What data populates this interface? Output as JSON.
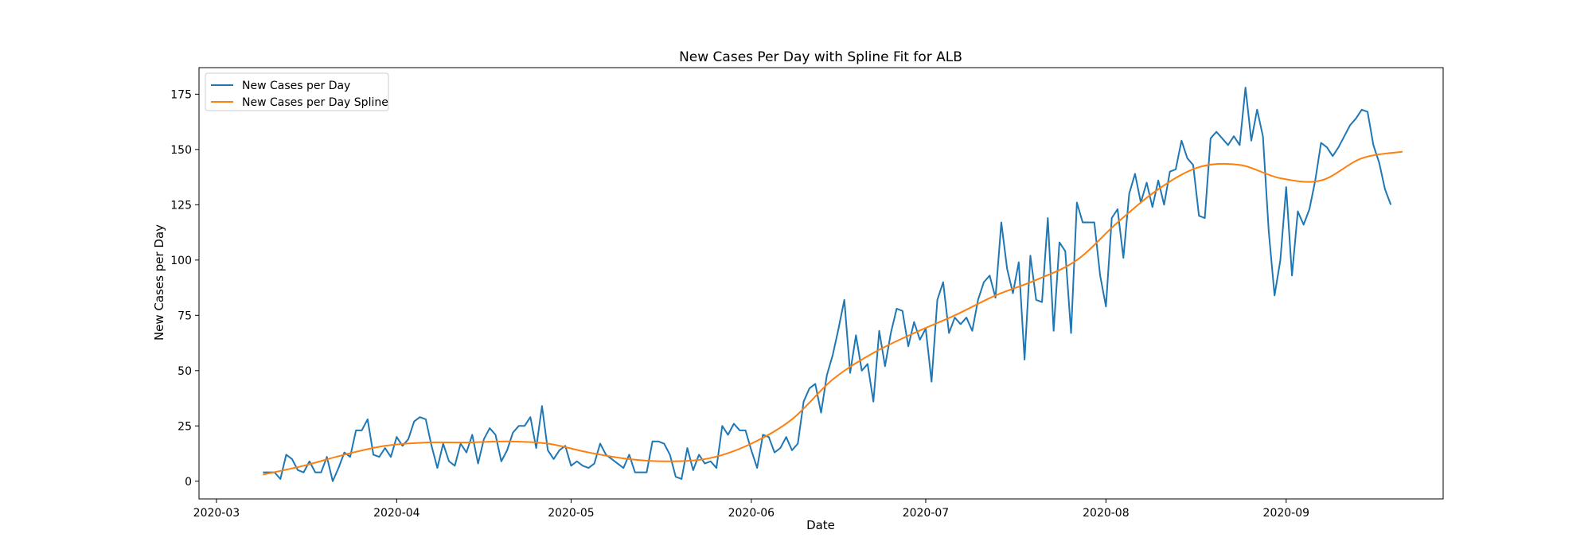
{
  "chart_data": {
    "type": "line",
    "title": "New Cases Per Day with Spline Fit for ALB",
    "xlabel": "Date",
    "ylabel": "New Cases per Day",
    "xlim": [
      "2020-02-27",
      "2020-09-28"
    ],
    "ylim": [
      -8,
      187
    ],
    "x_ticks": [
      "2020-03-01",
      "2020-04-01",
      "2020-05-01",
      "2020-06-01",
      "2020-07-01",
      "2020-08-01",
      "2020-09-01"
    ],
    "x_tick_labels": [
      "2020-03",
      "2020-04",
      "2020-05",
      "2020-06",
      "2020-07",
      "2020-08",
      "2020-09"
    ],
    "y_ticks": [
      0,
      25,
      50,
      75,
      100,
      125,
      150,
      175
    ],
    "grid": false,
    "legend_position": "upper-left",
    "x_start": "2020-03-09",
    "series": [
      {
        "name": "New Cases per Day",
        "color": "#1f77b4",
        "values": [
          4,
          4,
          4,
          1,
          12,
          10,
          5,
          4,
          9,
          4,
          4,
          11,
          0,
          6,
          13,
          11,
          23,
          23,
          28,
          12,
          11,
          15,
          11,
          20,
          16,
          19,
          27,
          29,
          28,
          16,
          6,
          17,
          9,
          7,
          17,
          13,
          21,
          8,
          19,
          24,
          21,
          9,
          14,
          22,
          25,
          25,
          29,
          15,
          34,
          14,
          10,
          14,
          16,
          7,
          9,
          7,
          6,
          8,
          17,
          12,
          10,
          8,
          6,
          12,
          4,
          4,
          4,
          18,
          18,
          17,
          12,
          2,
          1,
          15,
          5,
          12,
          8,
          9,
          6,
          25,
          21,
          26,
          23,
          23,
          14,
          6,
          21,
          20,
          13,
          15,
          20,
          14,
          17,
          36,
          42,
          44,
          31,
          48,
          57,
          69,
          82,
          49,
          66,
          50,
          53,
          36,
          68,
          52,
          67,
          78,
          77,
          61,
          72,
          64,
          69,
          45,
          82,
          90,
          67,
          74,
          71,
          74,
          68,
          82,
          90,
          93,
          83,
          117,
          96,
          85,
          99,
          55,
          102,
          82,
          81,
          119,
          68,
          108,
          104,
          67,
          126,
          117,
          117,
          117,
          93,
          79,
          119,
          123,
          101,
          130,
          139,
          126,
          135,
          124,
          136,
          125,
          140,
          141,
          154,
          146,
          143,
          120,
          119,
          155,
          158,
          155,
          152,
          156,
          152,
          178,
          154,
          168,
          156,
          113,
          84,
          100,
          133,
          93,
          122,
          116,
          123,
          136,
          153,
          151,
          147,
          151,
          156,
          161,
          164,
          168,
          167,
          152,
          144,
          132,
          125
        ]
      },
      {
        "name": "New Cases per Day Spline",
        "color": "#ff7f0e",
        "points": [
          [
            "2020-03-09",
            3
          ],
          [
            "2020-03-16",
            7
          ],
          [
            "2020-03-23",
            12
          ],
          [
            "2020-03-30",
            16
          ],
          [
            "2020-04-06",
            17.5
          ],
          [
            "2020-04-13",
            17.5
          ],
          [
            "2020-04-20",
            18
          ],
          [
            "2020-04-27",
            17
          ],
          [
            "2020-05-04",
            13
          ],
          [
            "2020-05-11",
            10
          ],
          [
            "2020-05-18",
            9
          ],
          [
            "2020-05-25",
            10.5
          ],
          [
            "2020-06-01",
            17
          ],
          [
            "2020-06-08",
            28
          ],
          [
            "2020-06-15",
            46
          ],
          [
            "2020-06-22",
            58
          ],
          [
            "2020-06-29",
            67
          ],
          [
            "2020-07-06",
            75
          ],
          [
            "2020-07-13",
            84
          ],
          [
            "2020-07-20",
            91
          ],
          [
            "2020-07-27",
            100
          ],
          [
            "2020-08-03",
            117
          ],
          [
            "2020-08-10",
            132
          ],
          [
            "2020-08-17",
            142
          ],
          [
            "2020-08-24",
            143
          ],
          [
            "2020-08-31",
            137
          ],
          [
            "2020-09-07",
            136
          ],
          [
            "2020-09-14",
            146
          ],
          [
            "2020-09-21",
            149
          ]
        ]
      }
    ]
  }
}
